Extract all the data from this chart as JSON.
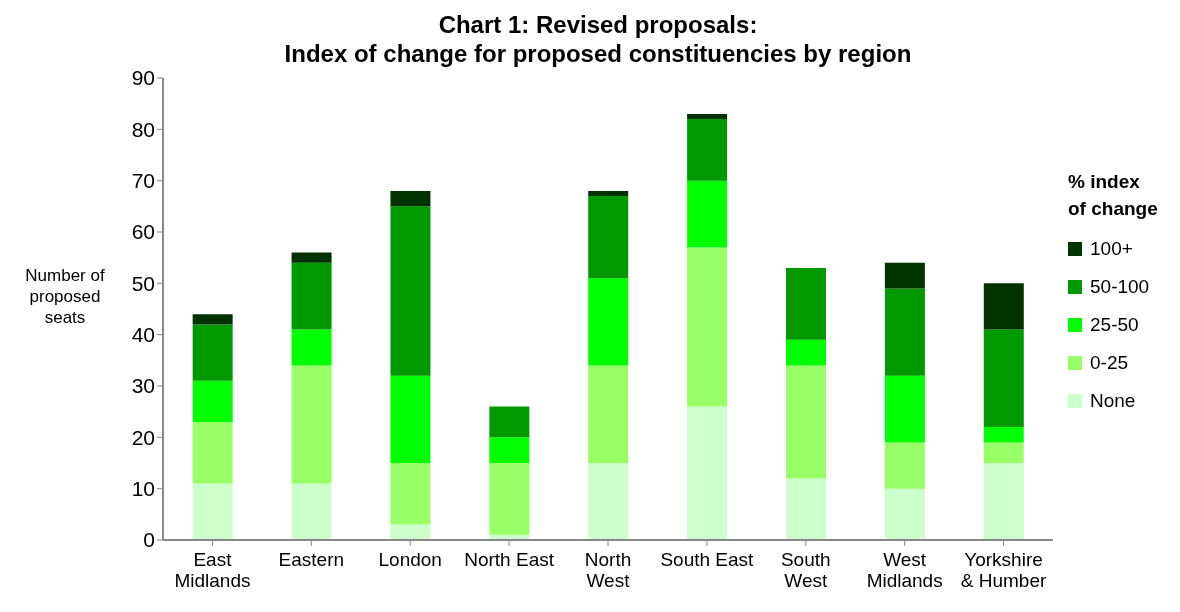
{
  "chart_data": {
    "type": "bar",
    "stacked": true,
    "title": "Chart 1: Revised proposals:\nIndex of change for proposed constituencies by region",
    "ylabel": "Number of\nproposed\nseats",
    "legend_title": "% index\nof change",
    "legend": "right",
    "grid": false,
    "categories": [
      "East\nMidlands",
      "Eastern",
      "London",
      "North East",
      "North\nWest",
      "South East",
      "South\nWest",
      "West\nMidlands",
      "Yorkshire\n& Humber"
    ],
    "ylim": [
      0,
      90
    ],
    "yticks": [
      0,
      10,
      20,
      30,
      40,
      50,
      60,
      70,
      80,
      90
    ],
    "series": [
      {
        "name": "None",
        "color": "#ccffcc",
        "values": [
          11,
          11,
          3,
          1,
          15,
          26,
          12,
          10,
          15
        ]
      },
      {
        "name": "0-25",
        "color": "#99ff66",
        "values": [
          12,
          23,
          12,
          14,
          19,
          31,
          22,
          9,
          4
        ]
      },
      {
        "name": "25-50",
        "color": "#00ff00",
        "values": [
          8,
          7,
          17,
          5,
          17,
          13,
          5,
          13,
          3
        ]
      },
      {
        "name": "50-100",
        "color": "#009900",
        "values": [
          11,
          13,
          33,
          6,
          16,
          12,
          14,
          17,
          19
        ]
      },
      {
        "name": "100+",
        "color": "#003300",
        "values": [
          2,
          2,
          3,
          0,
          1,
          1,
          0,
          5,
          9
        ]
      }
    ]
  }
}
